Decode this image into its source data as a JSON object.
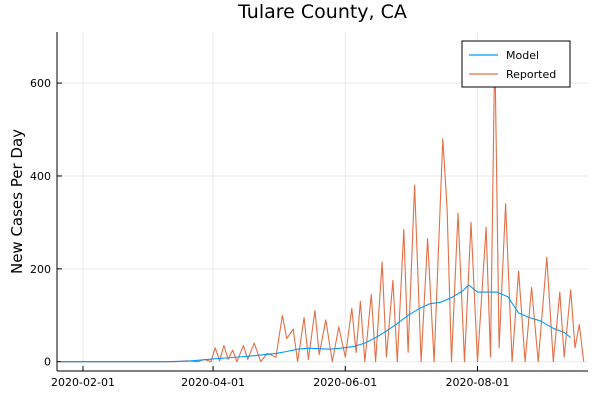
{
  "chart_data": {
    "type": "line",
    "title": "Tulare County, CA",
    "xlabel": "",
    "ylabel": "New Cases Per Day",
    "x_ticks": [
      "2020-02-01",
      "2020-04-01",
      "2020-06-01",
      "2020-08-01"
    ],
    "y_ticks": [
      0,
      200,
      400,
      600
    ],
    "xlim": [
      "2020-01-20",
      "2020-09-21"
    ],
    "ylim": [
      -20,
      710
    ],
    "grid": true,
    "legend_position": "top-right",
    "series": [
      {
        "name": "Model",
        "color": "#009AFA",
        "points": [
          [
            "2020-01-22",
            0
          ],
          [
            "2020-02-15",
            0
          ],
          [
            "2020-03-10",
            0
          ],
          [
            "2020-03-20",
            1
          ],
          [
            "2020-03-25",
            3
          ],
          [
            "2020-04-01",
            6
          ],
          [
            "2020-04-10",
            9
          ],
          [
            "2020-04-20",
            13
          ],
          [
            "2020-04-30",
            18
          ],
          [
            "2020-05-05",
            22
          ],
          [
            "2020-05-10",
            27
          ],
          [
            "2020-05-15",
            29
          ],
          [
            "2020-05-20",
            28
          ],
          [
            "2020-05-25",
            27
          ],
          [
            "2020-05-30",
            29
          ],
          [
            "2020-06-05",
            33
          ],
          [
            "2020-06-10",
            40
          ],
          [
            "2020-06-15",
            52
          ],
          [
            "2020-06-20",
            66
          ],
          [
            "2020-06-25",
            82
          ],
          [
            "2020-06-30",
            100
          ],
          [
            "2020-07-05",
            114
          ],
          [
            "2020-07-10",
            125
          ],
          [
            "2020-07-15",
            128
          ],
          [
            "2020-07-20",
            138
          ],
          [
            "2020-07-25",
            152
          ],
          [
            "2020-07-28",
            165
          ],
          [
            "2020-08-01",
            150
          ],
          [
            "2020-08-05",
            150
          ],
          [
            "2020-08-10",
            150
          ],
          [
            "2020-08-15",
            140
          ],
          [
            "2020-08-20",
            105
          ],
          [
            "2020-08-25",
            95
          ],
          [
            "2020-08-30",
            88
          ],
          [
            "2020-09-05",
            72
          ],
          [
            "2020-09-10",
            63
          ],
          [
            "2020-09-13",
            52
          ]
        ]
      },
      {
        "name": "Reported",
        "color": "#E26F46",
        "points": [
          [
            "2020-01-22",
            0
          ],
          [
            "2020-03-15",
            0
          ],
          [
            "2020-03-20",
            2
          ],
          [
            "2020-03-25",
            0
          ],
          [
            "2020-03-28",
            5
          ],
          [
            "2020-03-31",
            0
          ],
          [
            "2020-04-02",
            30
          ],
          [
            "2020-04-04",
            2
          ],
          [
            "2020-04-06",
            35
          ],
          [
            "2020-04-08",
            5
          ],
          [
            "2020-04-10",
            25
          ],
          [
            "2020-04-12",
            0
          ],
          [
            "2020-04-15",
            35
          ],
          [
            "2020-04-17",
            5
          ],
          [
            "2020-04-20",
            40
          ],
          [
            "2020-04-23",
            0
          ],
          [
            "2020-04-26",
            18
          ],
          [
            "2020-04-30",
            10
          ],
          [
            "2020-05-03",
            100
          ],
          [
            "2020-05-05",
            50
          ],
          [
            "2020-05-08",
            70
          ],
          [
            "2020-05-10",
            0
          ],
          [
            "2020-05-13",
            95
          ],
          [
            "2020-05-15",
            5
          ],
          [
            "2020-05-18",
            110
          ],
          [
            "2020-05-20",
            15
          ],
          [
            "2020-05-23",
            90
          ],
          [
            "2020-05-26",
            0
          ],
          [
            "2020-05-29",
            75
          ],
          [
            "2020-06-01",
            10
          ],
          [
            "2020-06-04",
            115
          ],
          [
            "2020-06-06",
            20
          ],
          [
            "2020-06-08",
            130
          ],
          [
            "2020-06-10",
            0
          ],
          [
            "2020-06-13",
            145
          ],
          [
            "2020-06-15",
            0
          ],
          [
            "2020-06-18",
            215
          ],
          [
            "2020-06-20",
            10
          ],
          [
            "2020-06-23",
            175
          ],
          [
            "2020-06-25",
            0
          ],
          [
            "2020-06-28",
            285
          ],
          [
            "2020-06-30",
            20
          ],
          [
            "2020-07-03",
            380
          ],
          [
            "2020-07-06",
            0
          ],
          [
            "2020-07-09",
            265
          ],
          [
            "2020-07-12",
            0
          ],
          [
            "2020-07-16",
            480
          ],
          [
            "2020-07-18",
            330
          ],
          [
            "2020-07-20",
            0
          ],
          [
            "2020-07-23",
            320
          ],
          [
            "2020-07-26",
            0
          ],
          [
            "2020-07-29",
            300
          ],
          [
            "2020-08-01",
            0
          ],
          [
            "2020-08-05",
            290
          ],
          [
            "2020-08-07",
            10
          ],
          [
            "2020-08-09",
            680
          ],
          [
            "2020-08-11",
            30
          ],
          [
            "2020-08-14",
            340
          ],
          [
            "2020-08-17",
            0
          ],
          [
            "2020-08-20",
            195
          ],
          [
            "2020-08-23",
            0
          ],
          [
            "2020-08-26",
            160
          ],
          [
            "2020-08-29",
            0
          ],
          [
            "2020-09-02",
            225
          ],
          [
            "2020-09-05",
            0
          ],
          [
            "2020-09-08",
            150
          ],
          [
            "2020-09-10",
            10
          ],
          [
            "2020-09-13",
            155
          ],
          [
            "2020-09-15",
            30
          ],
          [
            "2020-09-17",
            80
          ],
          [
            "2020-09-19",
            0
          ]
        ]
      }
    ]
  }
}
